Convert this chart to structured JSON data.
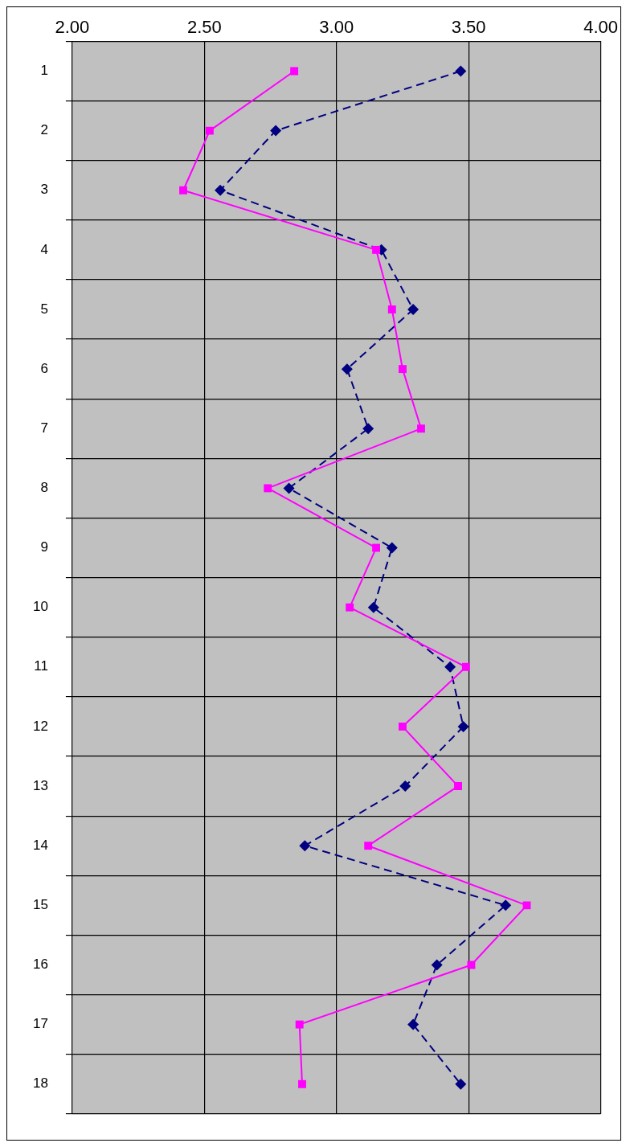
{
  "chart_data": {
    "type": "line",
    "orientation": "horizontal",
    "categories": [
      "1",
      "2",
      "3",
      "4",
      "5",
      "6",
      "7",
      "8",
      "9",
      "10",
      "11",
      "12",
      "13",
      "14",
      "15",
      "16",
      "17",
      "18"
    ],
    "xlim": [
      2,
      4
    ],
    "xticks": [
      {
        "value": 2,
        "label": "2.00"
      },
      {
        "value": 2.5,
        "label": "2.50"
      },
      {
        "value": 3,
        "label": "3.00"
      },
      {
        "value": 3.5,
        "label": "3.50"
      },
      {
        "value": 4,
        "label": "4.00"
      }
    ],
    "grid": true,
    "legend": false,
    "series": [
      {
        "color": "#ff00ff",
        "marker": "square",
        "line_style": "solid",
        "values": [
          2.84,
          2.52,
          2.42,
          3.15,
          3.21,
          3.25,
          3.32,
          2.74,
          3.15,
          3.05,
          3.49,
          3.25,
          3.46,
          3.12,
          3.72,
          3.51,
          2.86,
          2.87
        ]
      },
      {
        "color": "#000080",
        "marker": "diamond",
        "line_style": "dashed",
        "values": [
          3.47,
          2.77,
          2.56,
          3.17,
          3.29,
          3.04,
          3.12,
          2.82,
          3.21,
          3.14,
          3.43,
          3.48,
          3.26,
          2.88,
          3.64,
          3.38,
          3.29,
          3.47
        ]
      }
    ]
  }
}
